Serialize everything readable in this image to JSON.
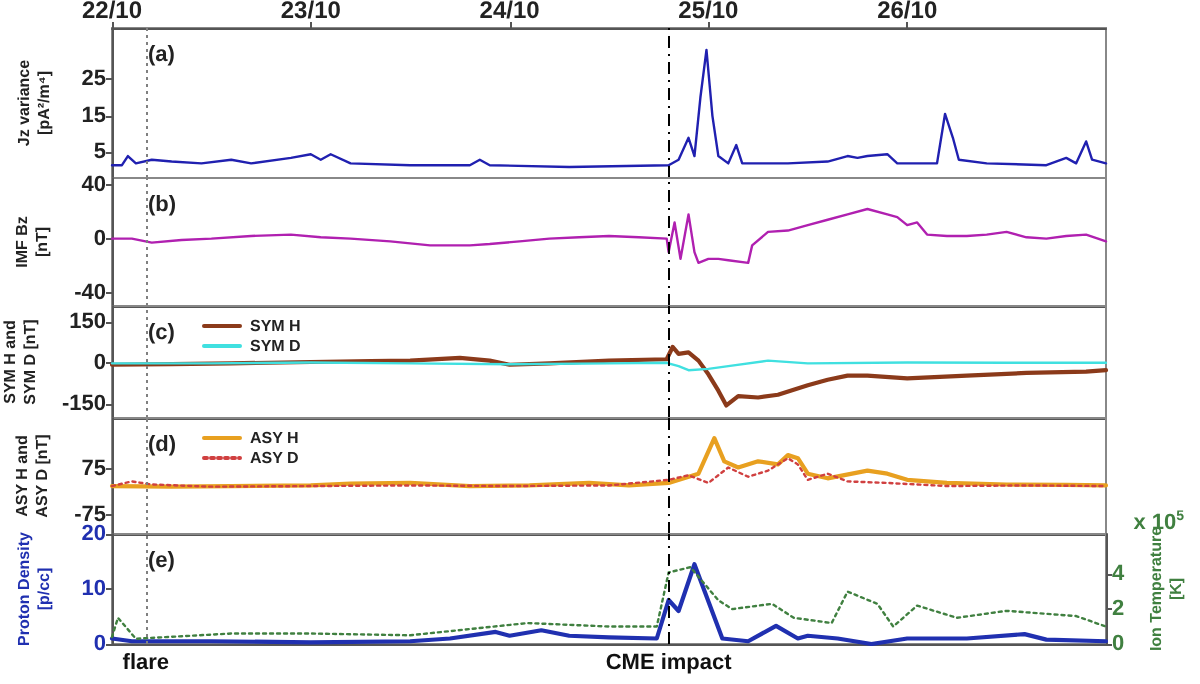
{
  "chart_data": [
    {
      "type": "line",
      "ylabel": "Jz variance\n[pA²/m⁴]",
      "annotations": [
        "(a)"
      ],
      "xlim": [
        "--10-22",
        "--10-27"
      ],
      "xticks": [
        {
          "value": "--10-22",
          "label": "22/10"
        },
        {
          "value": "--10-23",
          "label": "23/10"
        },
        {
          "value": "--10-24",
          "label": "24/10"
        },
        {
          "value": "--10-25",
          "label": "25/10"
        },
        {
          "value": "--10-26",
          "label": "26/10"
        }
      ],
      "ylim": [
        -2,
        39
      ],
      "yticks": [
        5,
        15,
        25
      ],
      "marker": "none",
      "grid": false,
      "legend": false,
      "ref_lines": [
        {
          "axis": "x",
          "value": "--10-22T04:05",
          "color": "#808080",
          "line_style": "dotted"
        },
        {
          "axis": "x",
          "value": "--10-24T19:12",
          "color": "#000000",
          "line_style": "dashed"
        }
      ],
      "series": [
        {
          "color": "#2020b0",
          "x": [
            "--10-22T00:00",
            "--10-22T01:12",
            "--10-22T01:55",
            "--10-22T02:53",
            "--10-22T04:48",
            "--10-22T07:12",
            "--10-22T10:48",
            "--10-22T14:24",
            "--10-22T16:48",
            "--10-22T21:36",
            "--10-23T00:00",
            "--10-23T01:12",
            "--10-23T02:24",
            "--10-23T04:48",
            "--10-23T12:00",
            "--10-23T19:12",
            "--10-23T20:24",
            "--10-23T21:36",
            "--10-24T07:12",
            "--10-24T19:12",
            "--10-24T20:24",
            "--10-24T21:36",
            "--10-24T22:19",
            "--10-24T23:02",
            "--10-24T23:46",
            "--10-25T00:29",
            "--10-25T01:12",
            "--10-25T02:24",
            "--10-25T03:22",
            "--10-25T04:05",
            "--10-25T09:36",
            "--10-25T14:24",
            "--10-25T16:48",
            "--10-25T18:00",
            "--10-25T19:12",
            "--10-25T21:36",
            "--10-25T22:48",
            "--10-26T03:36",
            "--10-26T04:34",
            "--10-26T05:31",
            "--10-26T06:14",
            "--10-26T09:36",
            "--10-26T16:48",
            "--10-26T19:12",
            "--10-26T20:24",
            "--10-26T21:36",
            "--10-26T22:19",
            "--10-27T00:00"
          ],
          "values": [
            1.5,
            1.5,
            4,
            2,
            3,
            2.5,
            2,
            3,
            2,
            3.5,
            4.5,
            3,
            4.5,
            2,
            1.5,
            1.5,
            3,
            1.5,
            1,
            1.5,
            3,
            9,
            4,
            20,
            33,
            15,
            4,
            2,
            7,
            2,
            2,
            2.5,
            4,
            3.5,
            4,
            4.5,
            2,
            2,
            15.5,
            9,
            3,
            2,
            1.5,
            3.5,
            2,
            8,
            3,
            2
          ]
        }
      ]
    },
    {
      "type": "line",
      "ylabel": "IMF Bz\n[nT]",
      "annotations": [
        "(b)"
      ],
      "xlim": [
        "--10-22",
        "--10-27"
      ],
      "ylim": [
        -50,
        45
      ],
      "yticks": [
        -40,
        0,
        40
      ],
      "tick_labels": "y",
      "marker": "none",
      "grid": false,
      "legend": false,
      "ref_lines": [
        {
          "axis": "x",
          "value": "--10-22T04:05",
          "color": "#808080",
          "line_style": "dotted"
        },
        {
          "axis": "x",
          "value": "--10-24T19:12",
          "color": "#000000",
          "line_style": "dashed"
        }
      ],
      "series": [
        {
          "color": "#b020b0",
          "x": [
            "--10-22T00:00",
            "--10-22T02:24",
            "--10-22T04:48",
            "--10-22T08:24",
            "--10-22T12:00",
            "--10-22T16:48",
            "--10-22T21:36",
            "--10-23T01:12",
            "--10-23T04:48",
            "--10-23T09:36",
            "--10-23T14:24",
            "--10-23T19:12",
            "--10-23T21:36",
            "--10-24T01:12",
            "--10-24T04:48",
            "--10-24T08:24",
            "--10-24T12:00",
            "--10-24T15:36",
            "--10-24T18:58",
            "--10-24T19:12",
            "--10-24T19:55",
            "--10-24T20:38",
            "--10-24T21:36",
            "--10-24T22:19",
            "--10-24T22:48",
            "--10-25T00:00",
            "--10-25T01:12",
            "--10-25T02:24",
            "--10-25T04:48",
            "--10-25T05:17",
            "--10-25T07:12",
            "--10-25T09:36",
            "--10-25T12:00",
            "--10-25T14:24",
            "--10-25T16:48",
            "--10-25T19:12",
            "--10-25T21:36",
            "--10-25T22:48",
            "--10-26T00:00",
            "--10-26T01:12",
            "--10-26T02:24",
            "--10-26T04:48",
            "--10-26T07:12",
            "--10-26T09:36",
            "--10-26T12:00",
            "--10-26T14:24",
            "--10-26T16:48",
            "--10-26T19:12",
            "--10-26T21:36",
            "--10-27T00:00"
          ],
          "values": [
            0,
            0,
            -3,
            -1,
            0,
            2,
            3,
            1,
            0,
            -2,
            -5,
            -5,
            -4,
            -2,
            0,
            1,
            2,
            1,
            0,
            -10,
            12,
            -15,
            18,
            -10,
            -18,
            -15,
            -15,
            -16,
            -18,
            -5,
            5,
            6,
            10,
            14,
            18,
            22,
            18,
            16,
            10,
            12,
            3,
            2,
            2,
            3,
            5,
            1,
            0,
            2,
            3,
            -2
          ]
        }
      ]
    },
    {
      "type": "line",
      "ylabel": "SYM H and\nSYM D [nT]",
      "annotations": [
        "(c)"
      ],
      "xlim": [
        "--10-22",
        "--10-27"
      ],
      "ylim": [
        -200,
        210
      ],
      "yticks": [
        -150,
        0,
        150
      ],
      "tick_labels": "y",
      "marker": "none",
      "grid": false,
      "legend": "top left",
      "ref_lines": [
        {
          "axis": "x",
          "value": "--10-22T04:05",
          "color": "#808080",
          "line_style": "dotted"
        },
        {
          "axis": "x",
          "value": "--10-24T19:12",
          "color": "#000000",
          "line_style": "dashed"
        }
      ],
      "series": [
        {
          "name": "SYM H",
          "color": "#8b3a1a",
          "x": [
            "--10-22T00:00",
            "--10-22T07:12",
            "--10-22T14:24",
            "--10-23T00:00",
            "--10-23T07:12",
            "--10-23T12:00",
            "--10-23T18:00",
            "--10-23T21:36",
            "--10-24T00:00",
            "--10-24T04:48",
            "--10-24T12:00",
            "--10-24T18:58",
            "--10-24T19:41",
            "--10-24T20:24",
            "--10-24T21:36",
            "--10-24T22:48",
            "--10-25T00:00",
            "--10-25T01:12",
            "--10-25T02:10",
            "--10-25T03:36",
            "--10-25T06:00",
            "--10-25T08:24",
            "--10-25T12:00",
            "--10-25T14:24",
            "--10-25T16:48",
            "--10-25T19:12",
            "--10-26T00:00",
            "--10-26T07:12",
            "--10-26T14:24",
            "--10-26T21:36",
            "--10-27T00:00"
          ],
          "values": [
            -5,
            -3,
            0,
            5,
            8,
            10,
            20,
            10,
            -5,
            0,
            10,
            15,
            60,
            35,
            40,
            10,
            -40,
            -100,
            -154,
            -120,
            -125,
            -115,
            -80,
            -60,
            -45,
            -45,
            -55,
            -45,
            -35,
            -30,
            -25
          ]
        },
        {
          "name": "SYM D",
          "color": "#40e0e0",
          "x": [
            "--10-22T00:00",
            "--10-22T12:00",
            "--10-23T00:00",
            "--10-23T12:00",
            "--10-24T00:00",
            "--10-24T12:00",
            "--10-24T18:58",
            "--10-24T20:24",
            "--10-24T21:36",
            "--10-25T00:00",
            "--10-25T02:24",
            "--10-25T07:12",
            "--10-25T12:00",
            "--10-26T00:00",
            "--10-26T12:00",
            "--10-27T00:00"
          ],
          "values": [
            0,
            0,
            3,
            0,
            -3,
            0,
            2,
            -10,
            -25,
            -20,
            -10,
            10,
            0,
            3,
            2,
            2
          ]
        }
      ]
    },
    {
      "type": "line",
      "ylabel": "ASY H and\nASY D [nT]",
      "annotations": [
        "(d)"
      ],
      "xlim": [
        "--10-22",
        "--10-27"
      ],
      "ylim": [
        -135,
        240
      ],
      "yticks": [
        -75,
        75
      ],
      "tick_labels": "y",
      "marker": "none",
      "grid": false,
      "legend": "top left",
      "ref_lines": [
        {
          "axis": "x",
          "value": "--10-22T04:05",
          "color": "#808080",
          "line_style": "dotted"
        },
        {
          "axis": "x",
          "value": "--10-24T19:12",
          "color": "#000000",
          "line_style": "dashed"
        }
      ],
      "series": [
        {
          "name": "ASY H",
          "color": "#e8a020",
          "line_style": "solid",
          "x": [
            "--10-22T00:00",
            "--10-22T07:12",
            "--10-22T14:24",
            "--10-23T00:00",
            "--10-23T04:48",
            "--10-23T12:00",
            "--10-23T19:12",
            "--10-24T02:24",
            "--10-24T09:36",
            "--10-24T14:24",
            "--10-24T19:12",
            "--10-24T22:48",
            "--10-25T00:43",
            "--10-25T01:55",
            "--10-25T03:36",
            "--10-25T06:00",
            "--10-25T08:24",
            "--10-25T09:36",
            "--10-25T10:48",
            "--10-25T12:00",
            "--10-25T14:24",
            "--10-25T19:12",
            "--10-25T21:36",
            "--10-26T00:00",
            "--10-26T04:48",
            "--10-26T12:00",
            "--10-26T19:12",
            "--10-27T00:00"
          ],
          "values": [
            20,
            18,
            20,
            22,
            28,
            30,
            20,
            22,
            30,
            22,
            30,
            60,
            175,
            100,
            80,
            100,
            90,
            120,
            110,
            60,
            45,
            70,
            60,
            40,
            30,
            25,
            24,
            22
          ]
        },
        {
          "name": "ASY D",
          "color": "#d04040",
          "line_style": "dotted",
          "x": [
            "--10-22T00:00",
            "--10-22T02:24",
            "--10-22T04:48",
            "--10-22T12:00",
            "--10-23T00:00",
            "--10-23T12:00",
            "--10-24T00:00",
            "--10-24T12:00",
            "--10-24T19:12",
            "--10-24T21:36",
            "--10-25T00:00",
            "--10-25T02:24",
            "--10-25T04:48",
            "--10-25T07:12",
            "--10-25T09:36",
            "--10-25T10:48",
            "--10-25T12:00",
            "--10-25T14:24",
            "--10-25T16:48",
            "--10-25T21:36",
            "--10-26T04:48",
            "--10-26T14:24",
            "--10-27T00:00"
          ],
          "values": [
            20,
            35,
            25,
            18,
            20,
            22,
            20,
            22,
            40,
            55,
            30,
            80,
            50,
            70,
            110,
            90,
            40,
            60,
            35,
            30,
            20,
            22,
            20
          ]
        }
      ]
    },
    {
      "type": "line",
      "ylabel": "Proton Density\n[p/cc]",
      "y2label": "Ion Temperature\n[K]",
      "annotations": [
        "(e)",
        "x 10$^{5}$"
      ],
      "xlim": [
        "--10-22",
        "--10-27"
      ],
      "ylim": [
        0,
        20
      ],
      "yticks": [
        0,
        10,
        20
      ],
      "y2lim": [
        0,
        6.3
      ],
      "y2ticks": [
        0,
        2,
        4
      ],
      "tick_labels": "y",
      "marker": "none",
      "grid": false,
      "legend": false,
      "ref_lines": [
        {
          "axis": "x",
          "value": "--10-22T04:05",
          "label": "flare",
          "color": "#808080",
          "line_style": "dotted"
        },
        {
          "axis": "x",
          "value": "--10-24T19:12",
          "label": "CME impact",
          "color": "#000000",
          "line_style": "dashed"
        }
      ],
      "series": [
        {
          "color": "#2030b0",
          "line_style": "solid",
          "x": [
            "--10-22T00:00",
            "--10-22T02:24",
            "--10-22T12:00",
            "--10-23T00:00",
            "--10-23T12:00",
            "--10-23T16:48",
            "--10-23T22:19",
            "--10-24T00:00",
            "--10-24T03:50",
            "--10-24T07:12",
            "--10-24T12:00",
            "--10-24T17:46",
            "--10-24T19:12",
            "--10-24T20:24",
            "--10-24T22:19",
            "--10-25T01:41",
            "--10-25T04:48",
            "--10-25T08:10",
            "--10-25T10:48",
            "--10-25T12:00",
            "--10-25T15:36",
            "--10-25T19:41",
            "--10-26T00:00",
            "--10-26T07:12",
            "--10-26T14:10",
            "--10-26T16:48",
            "--10-27T00:00"
          ],
          "values": [
            1,
            0.5,
            0.5,
            0.3,
            0.5,
            1,
            2.2,
            1.5,
            2.5,
            1.5,
            1.2,
            1,
            8,
            6,
            14.5,
            1,
            0.5,
            3.3,
            1,
            1.5,
            1,
            0,
            1,
            1,
            1.8,
            0.8,
            0.5
          ]
        },
        {
          "color": "#408040",
          "line_style": "dotted",
          "axis": "y2",
          "x": [
            "--10-22T00:00",
            "--10-22T00:43",
            "--10-22T02:53",
            "--10-22T14:24",
            "--10-23T00:00",
            "--10-23T12:00",
            "--10-24T02:10",
            "--10-24T12:00",
            "--10-24T17:46",
            "--10-24T19:12",
            "--10-24T21:50",
            "--10-25T01:12",
            "--10-25T02:53",
            "--10-25T07:41",
            "--10-25T10:19",
            "--10-25T14:53",
            "--10-25T16:48",
            "--10-25T20:24",
            "--10-25T22:19",
            "--10-26T01:12",
            "--10-26T06:00",
            "--10-26T12:00",
            "--10-26T20:24",
            "--10-27T00:00"
          ],
          "values": [
            0.4,
            1.5,
            0.3,
            0.6,
            0.6,
            0.5,
            1.2,
            1,
            1,
            4.1,
            4.4,
            2.5,
            2,
            2.3,
            1.5,
            1.2,
            3,
            2.3,
            1,
            2.2,
            1.5,
            1.9,
            1.6,
            1
          ]
        }
      ]
    }
  ]
}
